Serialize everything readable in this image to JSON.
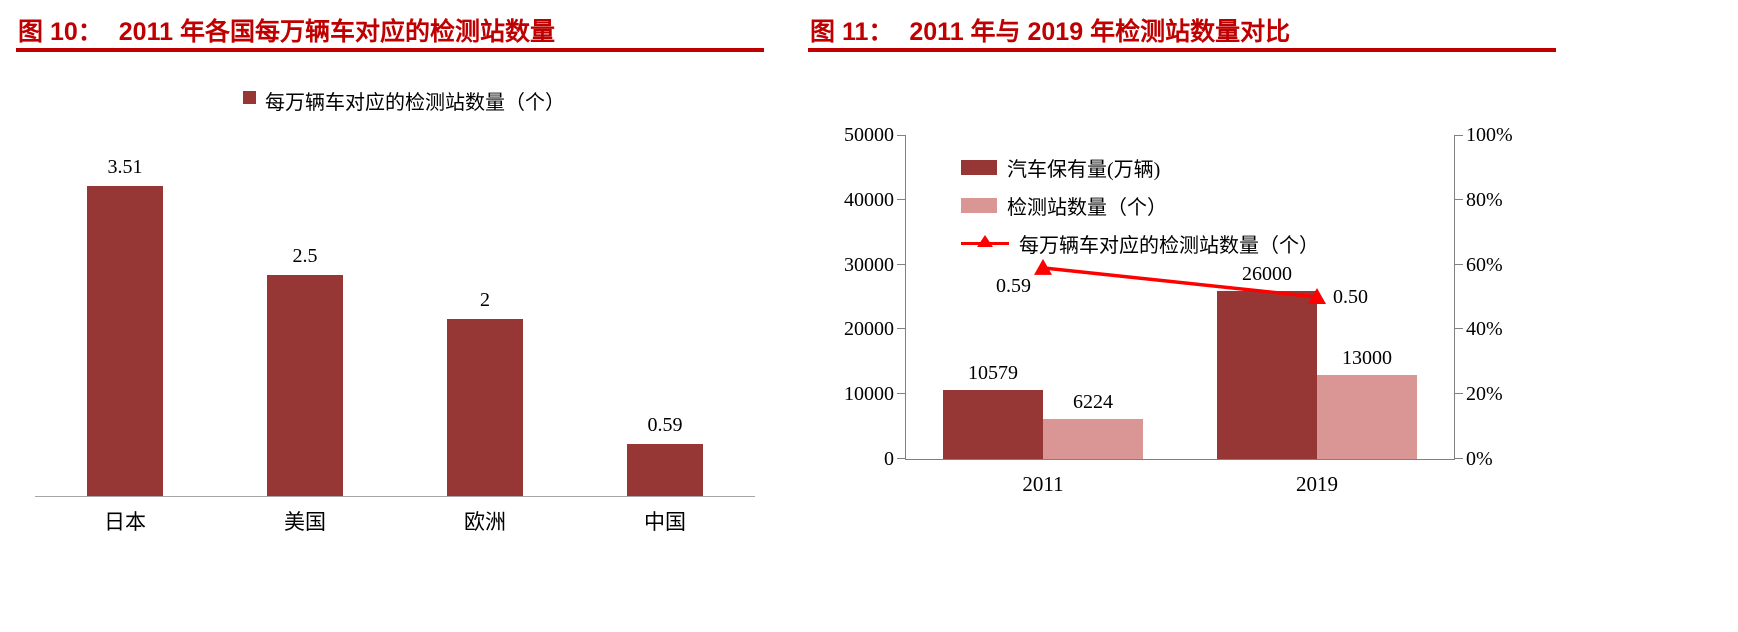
{
  "page": {
    "background": "#ffffff"
  },
  "colors": {
    "accent_red": "#c00000",
    "dark_red": "#963735",
    "light_red": "#d99694",
    "line_red": "#ff0000",
    "axis_gray": "#808080",
    "baseline_gray": "#a6a6a6",
    "text": "#000000"
  },
  "fig10": {
    "label": "图 10：",
    "title": "2011 年各国每万辆车对应的检测站数量"
  },
  "fig11": {
    "label": "图 11：",
    "title": "2011 年与 2019 年检测站数量对比"
  },
  "chart_data": [
    {
      "type": "bar",
      "title": "2011 年各国每万辆车对应的检测站数量",
      "legend": [
        "每万辆车对应的检测站数量（个）"
      ],
      "legend_position": "top-center",
      "categories": [
        "日本",
        "美国",
        "欧洲",
        "中国"
      ],
      "values": [
        3.51,
        2.5,
        2,
        0.59
      ],
      "value_labels": [
        "3.51",
        "2.5",
        "2",
        "0.59"
      ],
      "ylim": [
        0,
        4
      ],
      "grid": false,
      "bar_color": "#963735"
    },
    {
      "type": "combo",
      "title": "2011 年与 2019 年检测站数量对比",
      "legend_position": "top-left-inside",
      "categories": [
        "2011",
        "2019"
      ],
      "series": [
        {
          "name": "汽车保有量(万辆)",
          "type": "bar",
          "axis": "left",
          "color": "#963735",
          "values": [
            10579,
            26000
          ],
          "value_labels": [
            "10579",
            "26000"
          ]
        },
        {
          "name": "检测站数量（个）",
          "type": "bar",
          "axis": "left",
          "color": "#d99694",
          "values": [
            6224,
            13000
          ],
          "value_labels": [
            "6224",
            "13000"
          ]
        },
        {
          "name": "每万辆车对应的检测站数量（个）",
          "type": "line",
          "axis": "right",
          "color": "#ff0000",
          "marker": "triangle",
          "values": [
            0.59,
            0.5
          ],
          "value_labels": [
            "0.59",
            "0.50"
          ]
        }
      ],
      "left_axis": {
        "min": 0,
        "max": 50000,
        "ticks": [
          "0",
          "10000",
          "20000",
          "30000",
          "40000",
          "50000"
        ]
      },
      "right_axis": {
        "min": 0,
        "max": 1,
        "ticks": [
          "0%",
          "20%",
          "40%",
          "60%",
          "80%",
          "100%"
        ]
      },
      "grid": false
    }
  ]
}
